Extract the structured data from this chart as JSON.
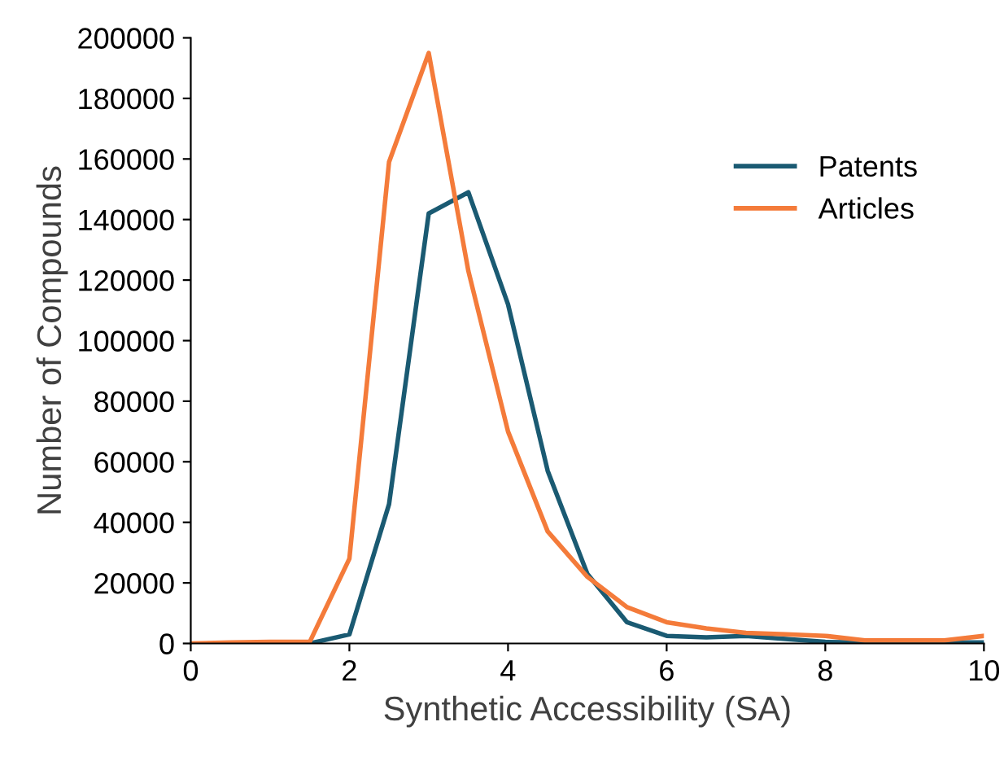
{
  "chart_data": {
    "type": "line",
    "xlabel": "Synthetic Accessibility (SA)",
    "ylabel": "Number of Compounds",
    "x": [
      0,
      0.5,
      1,
      1.5,
      2,
      2.5,
      3,
      3.5,
      4,
      4.5,
      5,
      5.5,
      6,
      6.5,
      7,
      7.5,
      8,
      8.5,
      9,
      9.5,
      10
    ],
    "series": [
      {
        "name": "Patents",
        "color": "#1a5a72",
        "values": [
          null,
          null,
          0,
          0,
          3000,
          46000,
          142000,
          149000,
          112000,
          57000,
          23000,
          7000,
          2500,
          2000,
          2500,
          1500,
          500,
          300,
          300,
          300,
          300
        ]
      },
      {
        "name": "Articles",
        "color": "#f47b3a",
        "values": [
          0,
          300,
          500,
          500,
          28000,
          159000,
          195000,
          123000,
          70000,
          37000,
          22000,
          12000,
          7000,
          5000,
          3500,
          3000,
          2500,
          1000,
          1000,
          1000,
          2500
        ]
      }
    ],
    "xlim": [
      0,
      10
    ],
    "xticks": [
      0,
      2,
      4,
      6,
      8,
      10
    ],
    "ylim": [
      0,
      200000
    ],
    "yticks": [
      0,
      20000,
      40000,
      60000,
      80000,
      100000,
      120000,
      140000,
      160000,
      180000,
      200000
    ],
    "grid": false,
    "legend": "top right",
    "marker": "none",
    "line_style": "solid"
  }
}
